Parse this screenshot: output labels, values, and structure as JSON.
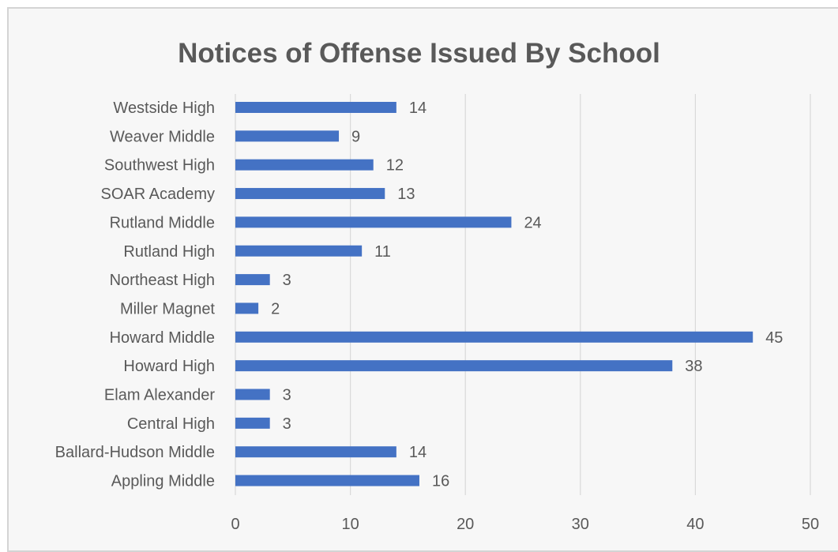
{
  "chart_data": {
    "type": "bar",
    "orientation": "horizontal",
    "title": "Notices of Offense Issued By School",
    "xlabel": "",
    "ylabel": "",
    "categories": [
      "Westside High",
      "Weaver Middle",
      "Southwest High",
      "SOAR Academy",
      "Rutland Middle",
      "Rutland High",
      "Northeast High",
      "Miller Magnet",
      "Howard Middle",
      "Howard High",
      "Elam Alexander",
      "Central High",
      "Ballard-Hudson Middle",
      "Appling Middle"
    ],
    "values": [
      14,
      9,
      12,
      13,
      24,
      11,
      3,
      2,
      45,
      38,
      3,
      3,
      14,
      16
    ],
    "xlim": [
      0,
      50
    ],
    "xticks": [
      0,
      10,
      20,
      30,
      40,
      50
    ],
    "grid": true,
    "legend": "none",
    "data_labels": true,
    "bar_color": "#4472c4",
    "background_color": "#f7f7f7"
  }
}
